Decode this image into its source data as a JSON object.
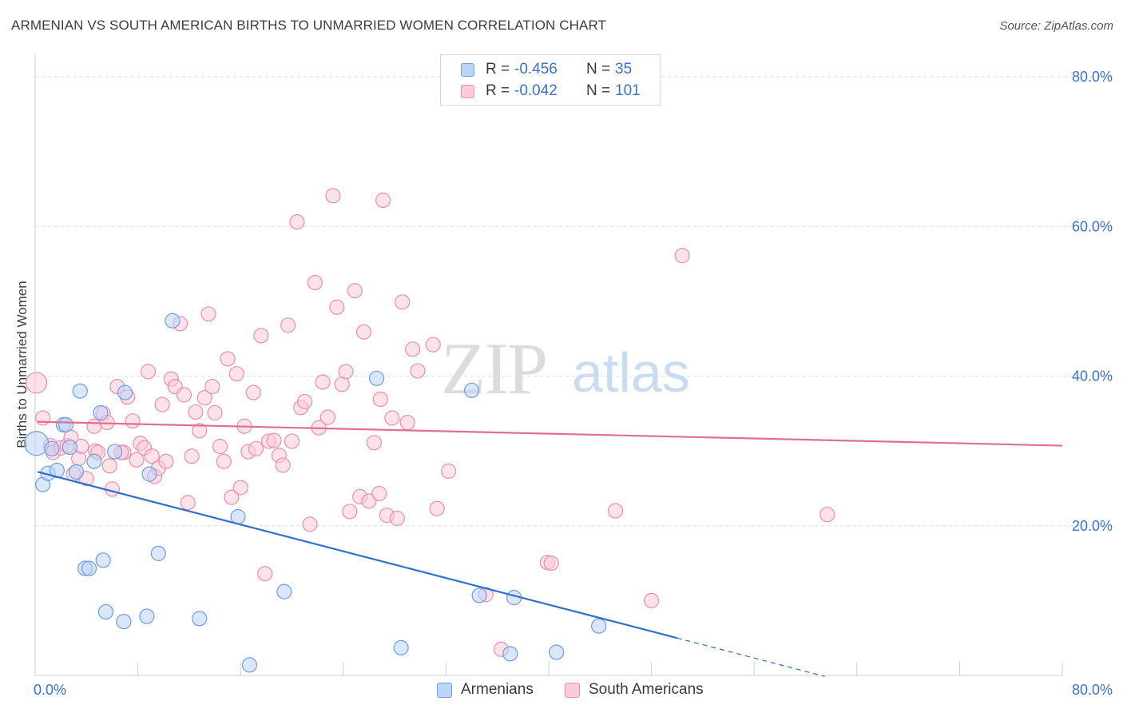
{
  "chart_data": {
    "type": "scatter",
    "title": "ARMENIAN VS SOUTH AMERICAN BIRTHS TO UNMARRIED WOMEN CORRELATION CHART",
    "source": "Source: ZipAtlas.com",
    "xlabel": "",
    "ylabel": "Births to Unmarried Women",
    "xlim": [
      0,
      80
    ],
    "ylim": [
      0,
      80
    ],
    "x_tick_labels": [
      "0.0%",
      "80.0%"
    ],
    "y_ticks": [
      20,
      40,
      60,
      80
    ],
    "y_tick_labels": [
      "20.0%",
      "40.0%",
      "60.0%",
      "80.0%"
    ],
    "grid": true,
    "watermark": "ZIPatlas",
    "legend": {
      "position": "top-center",
      "rows": [
        {
          "swatch": "blue",
          "r_label": "R =",
          "r_value": "-0.456",
          "n_label": "N =",
          "n_value": "35"
        },
        {
          "swatch": "pink",
          "r_label": "R =",
          "r_value": "-0.042",
          "n_label": "N =",
          "n_value": "101"
        }
      ]
    },
    "series": [
      {
        "name": "Armenians",
        "color": "#6f9de0",
        "fill": "#bcd4f5",
        "trend": {
          "x0": 0.2,
          "y0": 27.2,
          "x1": 50.0,
          "y1": 5.0,
          "dash_to_x": 61.5,
          "line_color": "#2f6fd0"
        },
        "points": [
          [
            0.1,
            31.0
          ],
          [
            0.6,
            25.5
          ],
          [
            1.0,
            27.0
          ],
          [
            1.7,
            27.4
          ],
          [
            1.3,
            30.3
          ],
          [
            2.7,
            30.5
          ],
          [
            2.2,
            33.5
          ],
          [
            2.4,
            33.5
          ],
          [
            3.2,
            27.2
          ],
          [
            3.5,
            38.0
          ],
          [
            3.9,
            14.3
          ],
          [
            4.2,
            14.3
          ],
          [
            4.6,
            28.6
          ],
          [
            5.1,
            35.1
          ],
          [
            5.3,
            15.4
          ],
          [
            5.5,
            8.5
          ],
          [
            6.2,
            29.9
          ],
          [
            6.9,
            7.2
          ],
          [
            7.0,
            37.8
          ],
          [
            8.7,
            7.9
          ],
          [
            8.9,
            26.9
          ],
          [
            9.6,
            16.3
          ],
          [
            10.7,
            47.4
          ],
          [
            12.8,
            7.6
          ],
          [
            15.8,
            21.2
          ],
          [
            16.7,
            1.4
          ],
          [
            19.4,
            11.2
          ],
          [
            26.6,
            39.7
          ],
          [
            28.5,
            3.7
          ],
          [
            34.0,
            38.1
          ],
          [
            34.6,
            10.7
          ],
          [
            37.0,
            2.9
          ],
          [
            37.3,
            10.4
          ],
          [
            40.6,
            3.1
          ],
          [
            43.9,
            6.6
          ]
        ]
      },
      {
        "name": "South Americans",
        "color": "#ec8fae",
        "fill": "#fbcbd9",
        "trend": {
          "x0": 0.2,
          "y0": 33.9,
          "x1": 80.0,
          "y1": 30.7,
          "line_color": "#e36c94"
        },
        "points": [
          [
            0.1,
            39.1
          ],
          [
            0.6,
            34.4
          ],
          [
            1.2,
            30.7
          ],
          [
            1.4,
            29.8
          ],
          [
            2.0,
            30.4
          ],
          [
            2.5,
            30.7
          ],
          [
            2.8,
            31.8
          ],
          [
            3.0,
            26.9
          ],
          [
            3.4,
            29.0
          ],
          [
            3.6,
            30.6
          ],
          [
            4.0,
            26.3
          ],
          [
            4.6,
            33.3
          ],
          [
            4.7,
            30.0
          ],
          [
            4.9,
            29.8
          ],
          [
            5.3,
            35.0
          ],
          [
            5.6,
            33.8
          ],
          [
            5.8,
            28.0
          ],
          [
            6.0,
            24.9
          ],
          [
            6.4,
            38.6
          ],
          [
            6.9,
            29.8
          ],
          [
            7.2,
            37.2
          ],
          [
            7.6,
            34.0
          ],
          [
            7.9,
            28.8
          ],
          [
            8.2,
            31.0
          ],
          [
            8.5,
            30.4
          ],
          [
            8.8,
            40.6
          ],
          [
            9.1,
            29.3
          ],
          [
            9.3,
            26.6
          ],
          [
            9.6,
            27.7
          ],
          [
            9.9,
            36.2
          ],
          [
            10.2,
            28.6
          ],
          [
            10.6,
            39.6
          ],
          [
            10.9,
            38.6
          ],
          [
            11.3,
            47.0
          ],
          [
            11.6,
            37.5
          ],
          [
            11.9,
            23.1
          ],
          [
            12.2,
            29.3
          ],
          [
            12.5,
            35.2
          ],
          [
            12.8,
            32.7
          ],
          [
            13.2,
            37.1
          ],
          [
            13.5,
            48.3
          ],
          [
            13.8,
            38.6
          ],
          [
            14.0,
            35.1
          ],
          [
            14.4,
            30.6
          ],
          [
            14.7,
            28.6
          ],
          [
            15.0,
            42.3
          ],
          [
            15.3,
            23.8
          ],
          [
            15.7,
            40.3
          ],
          [
            16.0,
            25.1
          ],
          [
            16.3,
            33.3
          ],
          [
            16.6,
            29.9
          ],
          [
            17.0,
            37.8
          ],
          [
            17.2,
            30.3
          ],
          [
            17.6,
            45.4
          ],
          [
            17.9,
            13.6
          ],
          [
            18.2,
            31.3
          ],
          [
            18.6,
            31.4
          ],
          [
            19.0,
            29.4
          ],
          [
            19.3,
            28.1
          ],
          [
            19.7,
            46.8
          ],
          [
            20.0,
            31.3
          ],
          [
            20.4,
            60.6
          ],
          [
            20.7,
            35.8
          ],
          [
            21.0,
            36.6
          ],
          [
            21.4,
            20.2
          ],
          [
            21.8,
            52.5
          ],
          [
            22.1,
            33.1
          ],
          [
            22.4,
            39.2
          ],
          [
            22.8,
            34.5
          ],
          [
            23.2,
            64.1
          ],
          [
            23.5,
            49.2
          ],
          [
            23.9,
            38.9
          ],
          [
            24.2,
            40.6
          ],
          [
            24.5,
            21.9
          ],
          [
            24.9,
            51.4
          ],
          [
            25.3,
            23.9
          ],
          [
            25.6,
            45.9
          ],
          [
            26.0,
            23.3
          ],
          [
            26.4,
            31.1
          ],
          [
            26.8,
            24.3
          ],
          [
            27.1,
            63.5
          ],
          [
            27.4,
            21.4
          ],
          [
            27.8,
            34.4
          ],
          [
            28.2,
            21.0
          ],
          [
            28.6,
            49.9
          ],
          [
            29.0,
            33.8
          ],
          [
            29.4,
            43.6
          ],
          [
            29.8,
            40.7
          ],
          [
            31.0,
            44.2
          ],
          [
            31.3,
            22.3
          ],
          [
            32.2,
            27.3
          ],
          [
            35.1,
            10.8
          ],
          [
            36.3,
            3.5
          ],
          [
            39.9,
            15.1
          ],
          [
            40.2,
            15.0
          ],
          [
            45.2,
            22.0
          ],
          [
            48.0,
            10.0
          ],
          [
            50.4,
            56.1
          ],
          [
            61.7,
            21.5
          ],
          [
            26.9,
            36.9
          ],
          [
            6.7,
            29.8
          ]
        ]
      }
    ]
  }
}
